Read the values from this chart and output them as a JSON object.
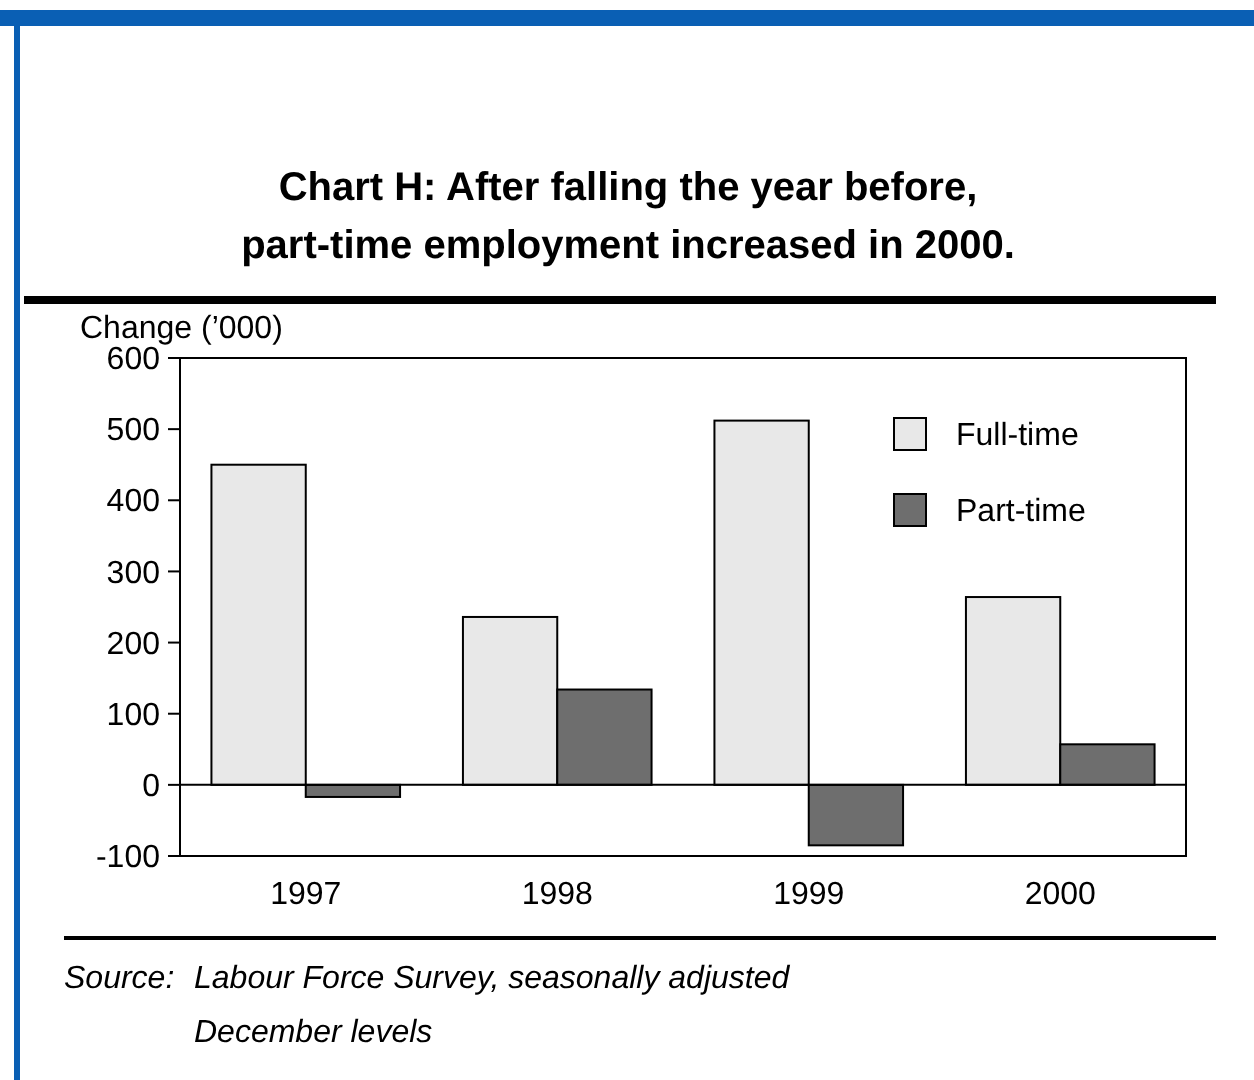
{
  "chart_data": {
    "type": "bar",
    "title": "Chart H: After falling the year before,\npart-time employment increased in 2000.",
    "ylabel": "Change (’000)",
    "categories": [
      "1997",
      "1998",
      "1999",
      "2000"
    ],
    "series": [
      {
        "name": "Full-time",
        "color": "#e8e8e8",
        "values": [
          450,
          236,
          512,
          264
        ]
      },
      {
        "name": "Part-time",
        "color": "#6e6e6e",
        "values": [
          -17,
          134,
          -85,
          57
        ]
      }
    ],
    "ylim": [
      -100,
      600
    ],
    "yticks": [
      -100,
      0,
      100,
      200,
      300,
      400,
      500,
      600
    ],
    "legend": "top right",
    "annotations": [
      "Source:\tLabour Force Survey, seasonally adjusted\nDecember levels"
    ]
  }
}
